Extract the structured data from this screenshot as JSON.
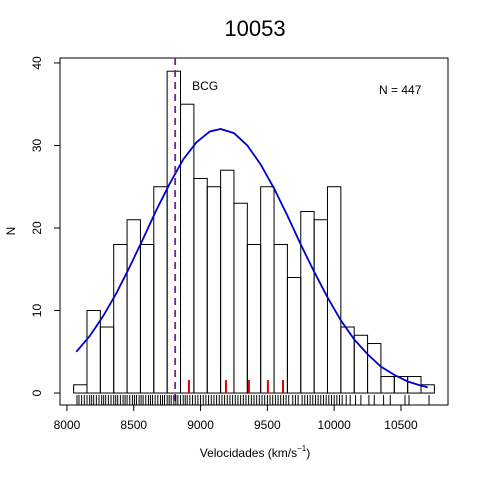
{
  "chart_data": {
    "type": "histogram",
    "title": "10053",
    "title_color": "#6a2a8a",
    "xlabel": "Velocidades  (km/s",
    "xlabel_sup": "−1",
    "xlabel_end": ")",
    "ylabel": "N",
    "annotation": "N =  447",
    "bcg_label": "BCG",
    "bcg_x": 8810,
    "bcg_color": "#6a2a8a",
    "bins": [
      8050,
      8150,
      8250,
      8350,
      8450,
      8550,
      8650,
      8750,
      8850,
      8950,
      9050,
      9150,
      9250,
      9350,
      9450,
      9550,
      9650,
      9750,
      9850,
      9950,
      10050,
      10150,
      10250,
      10350,
      10450,
      10550,
      10650,
      10750
    ],
    "counts": [
      1,
      10,
      8,
      18,
      21,
      18,
      25,
      39,
      35,
      26,
      25,
      27,
      23,
      18,
      25,
      18,
      14,
      22,
      21,
      25,
      8,
      7,
      6,
      2,
      2,
      2,
      1
    ],
    "fit": {
      "color": "#0000cc",
      "x": [
        8070,
        8170,
        8270,
        8370,
        8470,
        8570,
        8670,
        8770,
        8870,
        8970,
        9070,
        9150,
        9250,
        9350,
        9450,
        9550,
        9650,
        9750,
        9850,
        9950,
        10050,
        10150,
        10250,
        10350,
        10450,
        10550,
        10650,
        10700
      ],
      "values": [
        5.0,
        6.9,
        9.3,
        12.1,
        15.3,
        18.7,
        22.2,
        25.4,
        28.3,
        30.4,
        31.7,
        32.0,
        31.5,
        30.0,
        27.7,
        24.8,
        21.5,
        18.0,
        14.7,
        11.6,
        8.8,
        6.5,
        4.7,
        3.2,
        2.2,
        1.4,
        0.9,
        0.7
      ]
    },
    "red_ticks": [
      8913,
      9190,
      9362,
      9504,
      9617
    ],
    "red_color": "#dd0000",
    "rug": [
      8075,
      8090,
      8110,
      8130,
      8150,
      8170,
      8185,
      8200,
      8220,
      8240,
      8260,
      8275,
      8290,
      8310,
      8330,
      8350,
      8365,
      8380,
      8400,
      8420,
      8435,
      8450,
      8470,
      8490,
      8505,
      8520,
      8540,
      8555,
      8570,
      8590,
      8610,
      8625,
      8640,
      8660,
      8680,
      8700,
      8715,
      8730,
      8750,
      8765,
      8780,
      8800,
      8815,
      8830,
      8850,
      8870,
      8885,
      8900,
      8920,
      8940,
      8960,
      8980,
      9000,
      9020,
      9040,
      9060,
      9080,
      9100,
      9120,
      9140,
      9160,
      9180,
      9200,
      9220,
      9240,
      9260,
      9280,
      9300,
      9320,
      9340,
      9360,
      9380,
      9400,
      9420,
      9440,
      9460,
      9480,
      9500,
      9520,
      9540,
      9560,
      9580,
      9600,
      9620,
      9640,
      9660,
      9690,
      9710,
      9730,
      9760,
      9780,
      9800,
      9820,
      9840,
      9860,
      9880,
      9900,
      9920,
      9940,
      9960,
      9980,
      10000,
      10020,
      10040,
      10060,
      10090,
      10120,
      10160,
      10200,
      10260,
      10300,
      10370,
      10420,
      10530,
      10560,
      10710
    ],
    "xlim": [
      7948,
      10852
    ],
    "ylim": [
      -1.45,
      40.6
    ],
    "xticks": [
      8000,
      8500,
      9000,
      9500,
      10000,
      10500
    ],
    "yticks": [
      0,
      10,
      20,
      30,
      40
    ]
  }
}
